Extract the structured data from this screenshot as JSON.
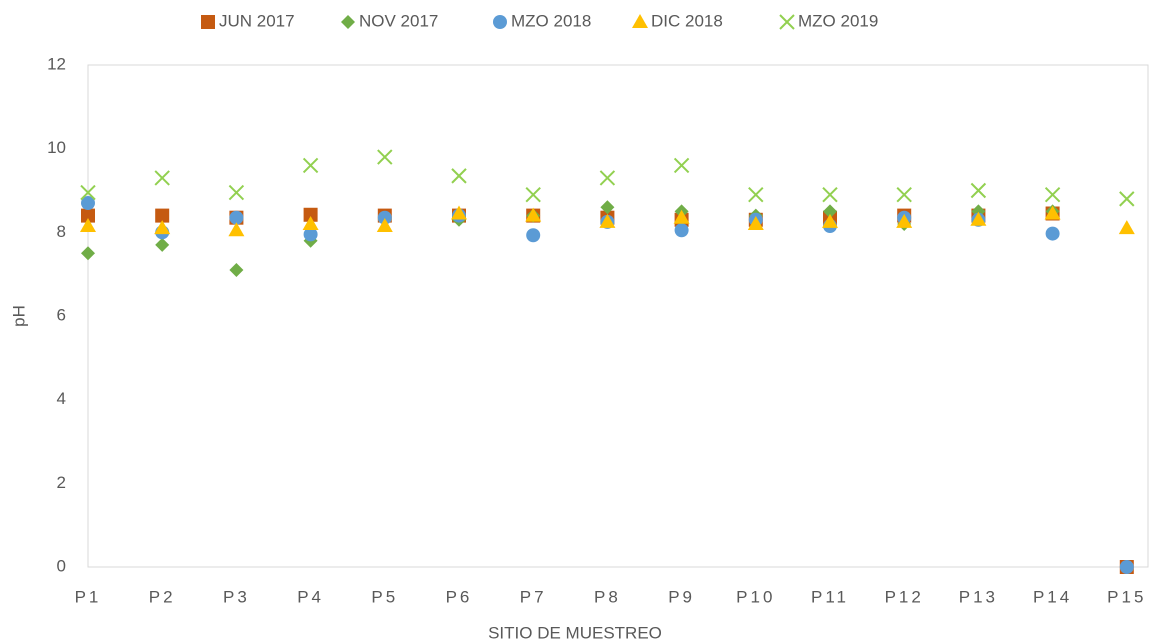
{
  "chart_data": {
    "type": "scatter",
    "x_label": "SITIO DE MUESTREO",
    "y_label": "pH",
    "categories": [
      "P1",
      "P2",
      "P3",
      "P4",
      "P5",
      "P6",
      "P7",
      "P8",
      "P9",
      "P10",
      "P11",
      "P12",
      "P13",
      "P14",
      "P15"
    ],
    "ylim": [
      0,
      12
    ],
    "yticks": [
      0,
      2,
      4,
      6,
      8,
      10,
      12
    ],
    "grid": false,
    "legend": "top",
    "series": [
      {
        "name": "JUN 2017",
        "color": "#c55a11",
        "marker": "square",
        "values": [
          8.4,
          8.4,
          8.35,
          8.42,
          8.4,
          8.4,
          8.4,
          8.35,
          8.3,
          8.3,
          8.35,
          8.4,
          8.4,
          8.45,
          0
        ]
      },
      {
        "name": "NOV 2017",
        "color": "#70ad47",
        "marker": "diamond",
        "values": [
          7.5,
          7.7,
          7.1,
          7.8,
          8.3,
          8.3,
          8.4,
          8.6,
          8.5,
          8.4,
          8.5,
          8.2,
          8.5,
          8.5,
          null
        ]
      },
      {
        "name": "MZO 2018",
        "color": "#5b9bd5",
        "marker": "circle",
        "values": [
          8.7,
          8.0,
          8.35,
          7.95,
          8.35,
          8.4,
          7.93,
          8.25,
          8.05,
          8.3,
          8.15,
          8.35,
          8.3,
          7.97,
          0
        ]
      },
      {
        "name": "DIC 2018",
        "color": "#ffc000",
        "marker": "triangle",
        "values": [
          8.15,
          8.1,
          8.05,
          8.2,
          8.15,
          8.45,
          8.4,
          8.25,
          8.35,
          8.2,
          8.25,
          8.25,
          8.3,
          8.45,
          8.1
        ]
      },
      {
        "name": "MZO 2019",
        "color": "#92d050",
        "marker": "cross",
        "values": [
          8.95,
          9.3,
          8.95,
          9.6,
          9.8,
          9.35,
          8.9,
          9.3,
          9.6,
          8.9,
          8.9,
          8.9,
          9.0,
          8.9,
          8.8
        ]
      }
    ]
  }
}
